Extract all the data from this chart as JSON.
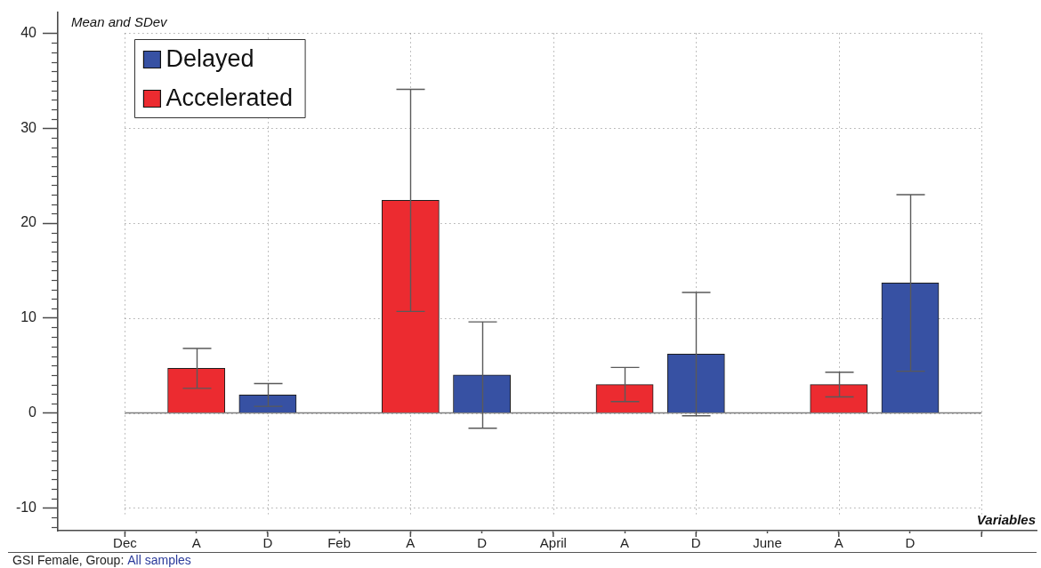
{
  "chart_data": {
    "type": "bar",
    "ylabel": "Mean and SDev",
    "xlabel": "Variables",
    "annotations": [
      "GSI Female, Group:",
      "All samples"
    ],
    "categories": [
      "Dec",
      "A",
      "D",
      "Feb",
      "A",
      "D",
      "April",
      "A",
      "D",
      "June",
      "A",
      "D",
      null
    ],
    "series": [
      {
        "name": "Delayed",
        "color": "#3751a3",
        "values": [
          null,
          null,
          1.9,
          null,
          null,
          4.0,
          null,
          null,
          6.2,
          null,
          null,
          13.7,
          null
        ],
        "errors": [
          null,
          null,
          1.2,
          null,
          null,
          5.6,
          null,
          null,
          6.5,
          null,
          null,
          9.3,
          null
        ]
      },
      {
        "name": "Accelerated",
        "color": "#ec2b30",
        "values": [
          null,
          4.7,
          null,
          null,
          22.4,
          null,
          null,
          3.0,
          null,
          null,
          3.0,
          null,
          null
        ],
        "errors": [
          null,
          2.1,
          null,
          null,
          11.7,
          null,
          null,
          1.8,
          null,
          null,
          1.3,
          null,
          null
        ]
      }
    ],
    "ylim": [
      -12.4,
      42.2
    ],
    "yticks": [
      -10,
      0,
      10,
      20,
      30,
      40
    ],
    "grid": true,
    "legend": "top left",
    "ref_lines": [
      {
        "axis": "y",
        "value": 0,
        "color": "#808080"
      }
    ]
  }
}
